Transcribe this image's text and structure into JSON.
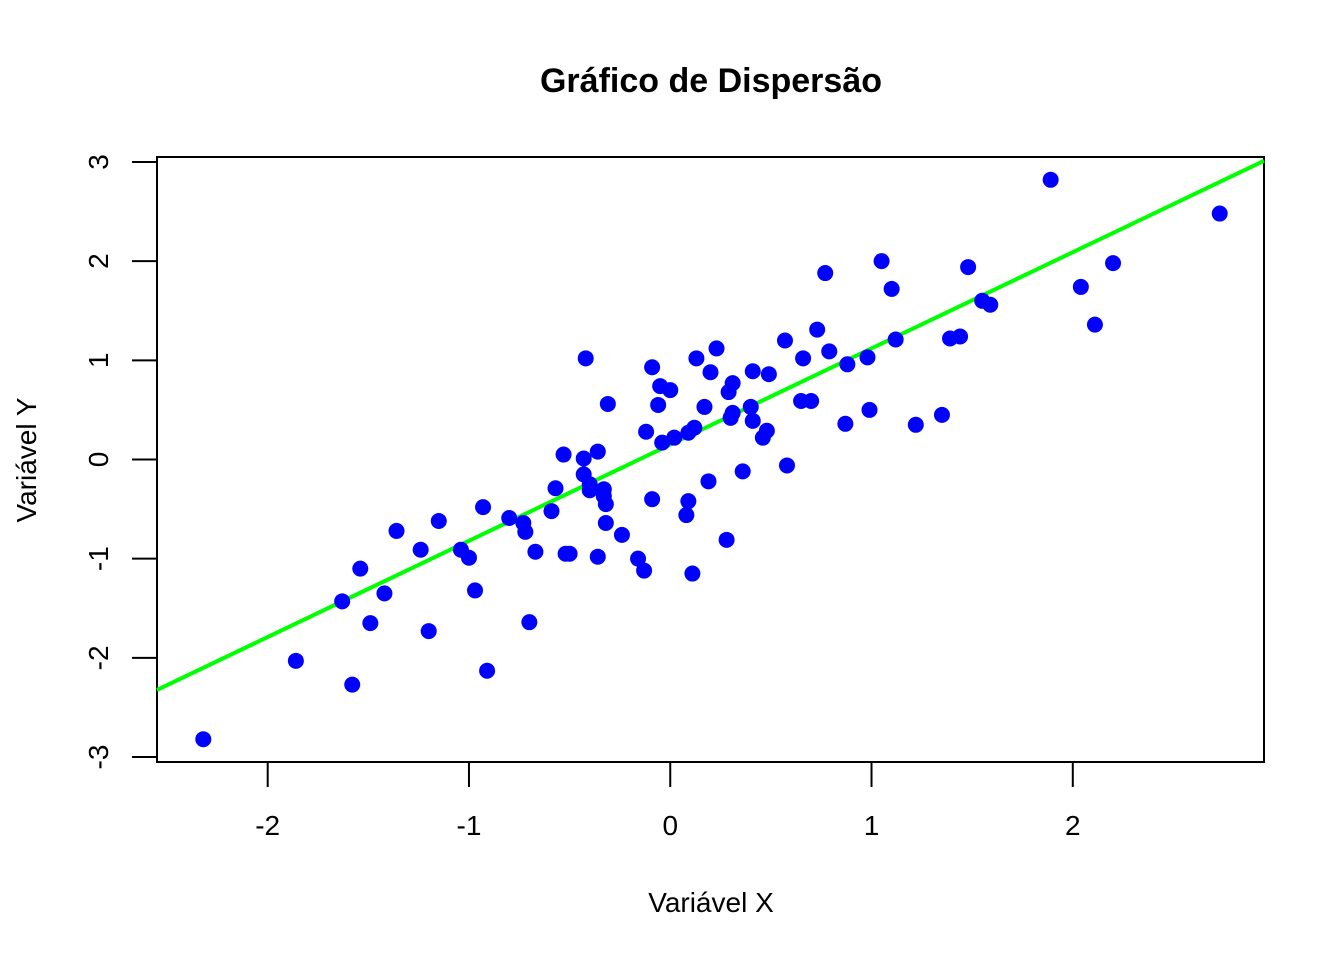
{
  "chart_data": {
    "type": "scatter",
    "title": "Gráfico de Dispersão",
    "xlabel": "Variável X",
    "ylabel": "Variável Y",
    "xlim": [
      -2.55,
      2.95
    ],
    "ylim": [
      -3.05,
      3.05
    ],
    "x_ticks": [
      -2,
      -1,
      0,
      1,
      2
    ],
    "y_ticks": [
      -3,
      -2,
      -1,
      0,
      1,
      2,
      3
    ],
    "x_tick_labels": [
      "-2",
      "-1",
      "0",
      "1",
      "2"
    ],
    "y_tick_labels": [
      "-3",
      "-2",
      "-1",
      "0",
      "1",
      "2",
      "3"
    ],
    "grid": false,
    "point_color": "#0000ff",
    "line_color": "#00ff00",
    "fit_line": {
      "intercept": 0.15,
      "slope": 0.97
    },
    "points": [
      [
        -2.32,
        -2.82
      ],
      [
        -1.86,
        -2.03
      ],
      [
        -1.58,
        -2.27
      ],
      [
        -1.63,
        -1.43
      ],
      [
        -1.54,
        -1.1
      ],
      [
        -1.49,
        -1.65
      ],
      [
        -1.42,
        -1.35
      ],
      [
        -1.36,
        -0.72
      ],
      [
        -1.24,
        -0.91
      ],
      [
        -1.2,
        -1.73
      ],
      [
        -1.15,
        -0.62
      ],
      [
        -1.04,
        -0.91
      ],
      [
        -1.0,
        -0.99
      ],
      [
        -0.97,
        -1.32
      ],
      [
        -0.93,
        -0.48
      ],
      [
        -0.91,
        -2.13
      ],
      [
        -0.8,
        -0.59
      ],
      [
        -0.73,
        -0.64
      ],
      [
        -0.72,
        -0.73
      ],
      [
        -0.7,
        -1.64
      ],
      [
        -0.67,
        -0.93
      ],
      [
        -0.59,
        -0.52
      ],
      [
        -0.57,
        -0.29
      ],
      [
        -0.53,
        0.05
      ],
      [
        -0.52,
        -0.95
      ],
      [
        -0.5,
        -0.95
      ],
      [
        -0.43,
        0.01
      ],
      [
        -0.43,
        -0.15
      ],
      [
        -0.42,
        1.02
      ],
      [
        -0.4,
        -0.25
      ],
      [
        -0.4,
        -0.31
      ],
      [
        -0.36,
        0.08
      ],
      [
        -0.36,
        -0.98
      ],
      [
        -0.33,
        -0.3
      ],
      [
        -0.33,
        -0.37
      ],
      [
        -0.32,
        -0.45
      ],
      [
        -0.32,
        -0.64
      ],
      [
        -0.31,
        0.56
      ],
      [
        -0.24,
        -0.76
      ],
      [
        -0.16,
        -1.0
      ],
      [
        -0.13,
        -1.12
      ],
      [
        -0.12,
        0.28
      ],
      [
        -0.09,
        0.93
      ],
      [
        -0.09,
        -0.4
      ],
      [
        -0.06,
        0.55
      ],
      [
        -0.05,
        0.74
      ],
      [
        -0.04,
        0.17
      ],
      [
        0.0,
        0.7
      ],
      [
        0.02,
        0.22
      ],
      [
        0.08,
        -0.56
      ],
      [
        0.09,
        -0.42
      ],
      [
        0.09,
        0.27
      ],
      [
        0.11,
        -1.15
      ],
      [
        0.12,
        0.32
      ],
      [
        0.13,
        1.02
      ],
      [
        0.17,
        0.53
      ],
      [
        0.19,
        -0.22
      ],
      [
        0.2,
        0.88
      ],
      [
        0.23,
        1.12
      ],
      [
        0.28,
        -0.81
      ],
      [
        0.29,
        0.68
      ],
      [
        0.3,
        0.42
      ],
      [
        0.31,
        0.77
      ],
      [
        0.31,
        0.47
      ],
      [
        0.36,
        -0.12
      ],
      [
        0.4,
        0.53
      ],
      [
        0.41,
        0.89
      ],
      [
        0.41,
        0.39
      ],
      [
        0.46,
        0.22
      ],
      [
        0.48,
        0.29
      ],
      [
        0.49,
        0.86
      ],
      [
        0.57,
        1.2
      ],
      [
        0.58,
        -0.06
      ],
      [
        0.65,
        0.59
      ],
      [
        0.66,
        1.02
      ],
      [
        0.7,
        0.59
      ],
      [
        0.73,
        1.31
      ],
      [
        0.77,
        1.88
      ],
      [
        0.79,
        1.09
      ],
      [
        0.87,
        0.36
      ],
      [
        0.88,
        0.96
      ],
      [
        0.98,
        1.03
      ],
      [
        0.99,
        0.5
      ],
      [
        1.05,
        2.0
      ],
      [
        1.1,
        1.72
      ],
      [
        1.12,
        1.21
      ],
      [
        1.22,
        0.35
      ],
      [
        1.35,
        0.45
      ],
      [
        1.39,
        1.22
      ],
      [
        1.44,
        1.24
      ],
      [
        1.48,
        1.94
      ],
      [
        1.55,
        1.6
      ],
      [
        1.59,
        1.56
      ],
      [
        1.89,
        2.82
      ],
      [
        2.04,
        1.74
      ],
      [
        2.11,
        1.36
      ],
      [
        2.2,
        1.98
      ],
      [
        2.73,
        2.48
      ]
    ]
  }
}
